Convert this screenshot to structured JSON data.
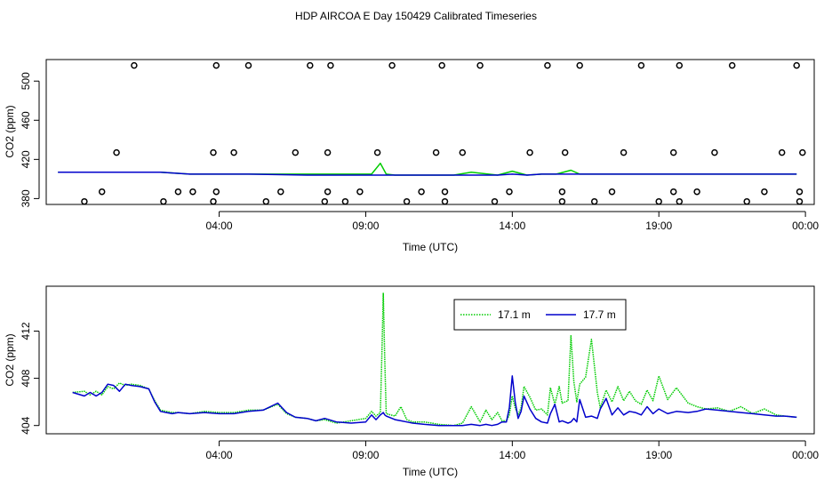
{
  "figure": {
    "title": "HDP AIRCOA E  Day 150429  Calibrated Timeseries"
  },
  "colors": {
    "green": "#00cc00",
    "blue": "#0000cc",
    "axis": "#000000"
  },
  "chart_data": [
    {
      "type": "line+scatter",
      "xlabel": "Time (UTC)",
      "ylabel": "CO2 (ppm)",
      "x_unit": "hours since 00:00 on day 150429",
      "xlim": [
        -1.9,
        24.3
      ],
      "ylim": [
        374,
        522
      ],
      "xticks": [
        {
          "v": 4,
          "label": "04:00"
        },
        {
          "v": 9,
          "label": "09:00"
        },
        {
          "v": 14,
          "label": "14:00"
        },
        {
          "v": 19,
          "label": "19:00"
        },
        {
          "v": 24,
          "label": "00:00"
        }
      ],
      "yticks": [
        {
          "v": 380,
          "label": "380"
        },
        {
          "v": 420,
          "label": "420"
        },
        {
          "v": 460,
          "label": "460"
        },
        {
          "v": 500,
          "label": "500"
        }
      ],
      "calibration_points": {
        "x": [
          -0.6,
          -0.0,
          0.5,
          1.1,
          2.1,
          2.6,
          3.1,
          3.8,
          3.8,
          3.9,
          3.9,
          4.5,
          5.0,
          5.6,
          6.1,
          6.6,
          7.1,
          7.6,
          7.7,
          7.7,
          7.8,
          8.3,
          8.8,
          9.4,
          9.9,
          10.4,
          10.9,
          11.4,
          11.6,
          11.7,
          11.7,
          12.3,
          12.9,
          13.4,
          13.9,
          14.6,
          15.2,
          15.7,
          15.7,
          15.8,
          16.3,
          16.8,
          17.4,
          17.8,
          18.4,
          19.0,
          19.5,
          19.5,
          19.7,
          19.7,
          20.3,
          20.9,
          21.5,
          22.0,
          22.6,
          23.2,
          23.7,
          23.8,
          23.8,
          23.9
        ],
        "y": [
          377,
          387,
          427,
          516,
          377,
          387,
          387,
          377,
          427,
          516,
          387,
          427,
          516,
          377,
          387,
          427,
          516,
          377,
          387,
          427,
          516,
          377,
          387,
          427,
          516,
          377,
          387,
          427,
          516,
          377,
          387,
          427,
          516,
          377,
          387,
          427,
          516,
          377,
          387,
          427,
          516,
          377,
          387,
          427,
          516,
          377,
          387,
          427,
          516,
          377,
          387,
          427,
          516,
          377,
          387,
          427,
          516,
          377,
          387,
          427
        ]
      },
      "series": [
        {
          "color": "#00cc00",
          "x": [
            -1.5,
            0.0,
            1.0,
            2.0,
            3.0,
            5.0,
            7.0,
            8.0,
            9.0,
            9.2,
            9.5,
            9.7,
            10.0,
            12.0,
            12.6,
            13.5,
            14.0,
            14.5,
            15.0,
            15.2,
            15.5,
            16.0,
            16.3,
            16.7,
            17.0,
            18.0,
            20.0,
            22.0,
            23.7
          ],
          "y": [
            407,
            407,
            407,
            407,
            405,
            405,
            405,
            405,
            405,
            405,
            416,
            405,
            404,
            404,
            407,
            404,
            408,
            404,
            405,
            405,
            405,
            409,
            405,
            405,
            405,
            405,
            405,
            405,
            405
          ]
        },
        {
          "color": "#0000cc",
          "x": [
            -1.5,
            0.0,
            1.0,
            2.0,
            3.0,
            5.0,
            7.0,
            8.0,
            9.0,
            10.0,
            12.0,
            13.5,
            14.0,
            14.5,
            15.0,
            16.0,
            17.0,
            18.0,
            20.0,
            22.0,
            23.7
          ],
          "y": [
            407,
            407,
            407,
            407,
            405,
            405,
            404,
            404,
            404,
            404,
            404,
            404,
            405,
            404,
            405,
            405,
            405,
            405,
            405,
            405,
            405
          ]
        }
      ]
    },
    {
      "type": "line",
      "xlabel": "Time (UTC)",
      "ylabel": "CO2 (ppm)",
      "x_unit": "hours since 00:00 on day 150429",
      "xlim": [
        -1.9,
        24.3
      ],
      "ylim": [
        403.3,
        415.8
      ],
      "xticks": [
        {
          "v": 4,
          "label": "04:00"
        },
        {
          "v": 9,
          "label": "09:00"
        },
        {
          "v": 14,
          "label": "14:00"
        },
        {
          "v": 19,
          "label": "19:00"
        },
        {
          "v": 24,
          "label": "00:00"
        }
      ],
      "yticks": [
        {
          "v": 404,
          "label": "404"
        },
        {
          "v": 408,
          "label": "408"
        },
        {
          "v": 412,
          "label": "412"
        }
      ],
      "legend": {
        "position": "top-right"
      },
      "series": [
        {
          "name": "17.1 m",
          "color": "#00cc00",
          "dash": "dotted",
          "x": [
            -1.0,
            -0.6,
            -0.4,
            -0.2,
            0.0,
            0.2,
            0.4,
            0.6,
            0.8,
            1.0,
            1.3,
            1.6,
            1.8,
            2.0,
            2.2,
            2.4,
            2.6,
            3.0,
            3.5,
            4.0,
            4.5,
            5.0,
            5.5,
            6.0,
            6.3,
            6.6,
            7.0,
            7.3,
            7.6,
            8.0,
            8.5,
            9.0,
            9.2,
            9.35,
            9.5,
            9.55,
            9.6,
            9.65,
            9.7,
            10.0,
            10.2,
            10.4,
            10.6,
            11.0,
            11.5,
            12.0,
            12.3,
            12.6,
            12.9,
            13.1,
            13.3,
            13.5,
            13.65,
            13.8,
            13.9,
            14.0,
            14.1,
            14.2,
            14.3,
            14.4,
            14.6,
            14.8,
            15.0,
            15.2,
            15.3,
            15.45,
            15.6,
            15.7,
            15.9,
            16.0,
            16.1,
            16.2,
            16.3,
            16.5,
            16.7,
            16.9,
            17.0,
            17.2,
            17.4,
            17.6,
            17.8,
            18.0,
            18.2,
            18.4,
            18.6,
            18.8,
            19.0,
            19.3,
            19.6,
            20.0,
            20.3,
            20.6,
            21.0,
            21.4,
            21.8,
            22.2,
            22.6,
            23.0,
            23.3,
            23.7
          ],
          "y": [
            406.8,
            406.9,
            406.6,
            406.9,
            406.6,
            407.3,
            407.1,
            407.6,
            407.4,
            407.5,
            407.4,
            407.1,
            406.1,
            405.3,
            405.2,
            405.1,
            405.1,
            405.0,
            405.2,
            405.1,
            405.1,
            405.3,
            405.3,
            405.8,
            405.0,
            404.7,
            404.6,
            404.4,
            404.5,
            404.2,
            404.4,
            404.6,
            405.2,
            404.8,
            405.1,
            410.0,
            415.2,
            409.5,
            405.0,
            404.8,
            405.6,
            404.5,
            404.3,
            404.3,
            404.1,
            404.0,
            404.2,
            405.6,
            404.3,
            405.3,
            404.5,
            405.1,
            404.4,
            404.4,
            404.9,
            406.5,
            405.5,
            404.9,
            405.5,
            407.3,
            406.4,
            405.3,
            405.4,
            404.9,
            407.2,
            405.8,
            407.3,
            405.9,
            406.1,
            411.6,
            407.7,
            406.0,
            407.5,
            408.1,
            411.3,
            406.8,
            405.5,
            407.0,
            406.0,
            407.3,
            406.1,
            406.9,
            406.1,
            405.8,
            407.0,
            406.1,
            408.2,
            406.2,
            407.2,
            405.9,
            405.6,
            405.4,
            405.5,
            405.2,
            405.6,
            405.0,
            405.4,
            404.9,
            404.8,
            404.7
          ]
        },
        {
          "name": "17.7 m",
          "color": "#0000cc",
          "dash": "solid",
          "x": [
            -1.0,
            -0.6,
            -0.4,
            -0.2,
            0.0,
            0.2,
            0.4,
            0.6,
            0.8,
            1.0,
            1.3,
            1.6,
            1.8,
            2.0,
            2.2,
            2.4,
            2.6,
            3.0,
            3.5,
            4.0,
            4.5,
            5.0,
            5.5,
            6.0,
            6.3,
            6.6,
            7.0,
            7.3,
            7.6,
            8.0,
            8.5,
            9.0,
            9.2,
            9.35,
            9.5,
            9.55,
            9.6,
            9.65,
            9.7,
            10.0,
            10.2,
            10.4,
            10.6,
            11.0,
            11.5,
            12.0,
            12.3,
            12.6,
            12.9,
            13.1,
            13.3,
            13.5,
            13.65,
            13.8,
            13.9,
            14.0,
            14.1,
            14.2,
            14.3,
            14.4,
            14.6,
            14.8,
            15.0,
            15.2,
            15.3,
            15.45,
            15.6,
            15.7,
            15.9,
            16.0,
            16.1,
            16.2,
            16.3,
            16.5,
            16.7,
            16.9,
            17.0,
            17.2,
            17.4,
            17.6,
            17.8,
            18.0,
            18.2,
            18.4,
            18.6,
            18.8,
            19.0,
            19.3,
            19.6,
            20.0,
            20.3,
            20.6,
            21.0,
            21.4,
            21.8,
            22.2,
            22.6,
            23.0,
            23.3,
            23.7
          ],
          "y": [
            406.8,
            406.5,
            406.8,
            406.5,
            406.8,
            407.5,
            407.4,
            406.9,
            407.5,
            407.4,
            407.3,
            407.1,
            406.0,
            405.2,
            405.1,
            405.0,
            405.1,
            405.0,
            405.1,
            405.0,
            405.0,
            405.2,
            405.3,
            405.9,
            405.1,
            404.7,
            404.6,
            404.4,
            404.6,
            404.3,
            404.2,
            404.3,
            404.9,
            404.5,
            404.9,
            405.0,
            405.1,
            404.9,
            404.8,
            404.5,
            404.4,
            404.3,
            404.2,
            404.1,
            404.0,
            404.0,
            404.0,
            404.1,
            404.0,
            404.1,
            404.0,
            404.1,
            404.3,
            404.3,
            405.5,
            408.2,
            406.0,
            404.6,
            405.2,
            406.5,
            405.4,
            404.6,
            404.3,
            404.2,
            405.0,
            405.8,
            404.3,
            404.4,
            404.2,
            404.3,
            404.6,
            404.3,
            406.2,
            404.7,
            404.8,
            404.6,
            405.4,
            406.3,
            404.9,
            405.5,
            404.9,
            405.2,
            405.1,
            404.9,
            405.6,
            405.0,
            405.4,
            405.0,
            405.2,
            405.1,
            405.2,
            405.4,
            405.3,
            405.2,
            405.1,
            405.0,
            404.9,
            404.8,
            404.8,
            404.7
          ]
        }
      ]
    }
  ]
}
